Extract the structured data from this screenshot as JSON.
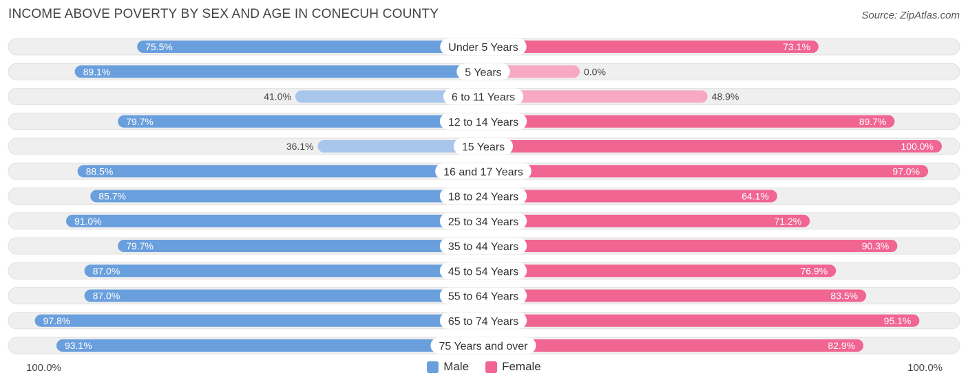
{
  "header": {
    "title": "INCOME ABOVE POVERTY BY SEX AND AGE IN CONECUH COUNTY",
    "source": "Source: ZipAtlas.com"
  },
  "colors": {
    "male_strong": "#6a9fdd",
    "male_light": "#a8c6ec",
    "female_strong": "#f06592",
    "female_light": "#f7a8c4",
    "track": "#efefef"
  },
  "chart_data": {
    "type": "bar",
    "orientation": "horizontal-diverging",
    "title": "INCOME ABOVE POVERTY BY SEX AND AGE IN CONECUH COUNTY",
    "categories": [
      "Under 5 Years",
      "5 Years",
      "6 to 11 Years",
      "12 to 14 Years",
      "15 Years",
      "16 and 17 Years",
      "18 to 24 Years",
      "25 to 34 Years",
      "35 to 44 Years",
      "45 to 54 Years",
      "55 to 64 Years",
      "65 to 74 Years",
      "75 Years and over"
    ],
    "series": [
      {
        "name": "Male",
        "values": [
          75.5,
          89.1,
          41.0,
          79.7,
          36.1,
          88.5,
          85.7,
          91.0,
          79.7,
          87.0,
          87.0,
          97.8,
          93.1
        ],
        "labels": [
          "75.5%",
          "89.1%",
          "41.0%",
          "79.7%",
          "36.1%",
          "88.5%",
          "85.7%",
          "91.0%",
          "79.7%",
          "87.0%",
          "87.0%",
          "97.8%",
          "93.1%"
        ]
      },
      {
        "name": "Female",
        "values": [
          73.1,
          0.0,
          48.9,
          89.7,
          100.0,
          97.0,
          64.1,
          71.2,
          90.3,
          76.9,
          83.5,
          95.1,
          82.9
        ],
        "labels": [
          "73.1%",
          "0.0%",
          "48.9%",
          "89.7%",
          "100.0%",
          "97.0%",
          "64.1%",
          "71.2%",
          "90.3%",
          "76.9%",
          "83.5%",
          "95.1%",
          "82.9%"
        ]
      }
    ],
    "xlim": [
      0,
      100
    ],
    "axis_left_label": "100.0%",
    "axis_right_label": "100.0%",
    "legend": [
      "Male",
      "Female"
    ],
    "legend_position": "bottom-center"
  }
}
